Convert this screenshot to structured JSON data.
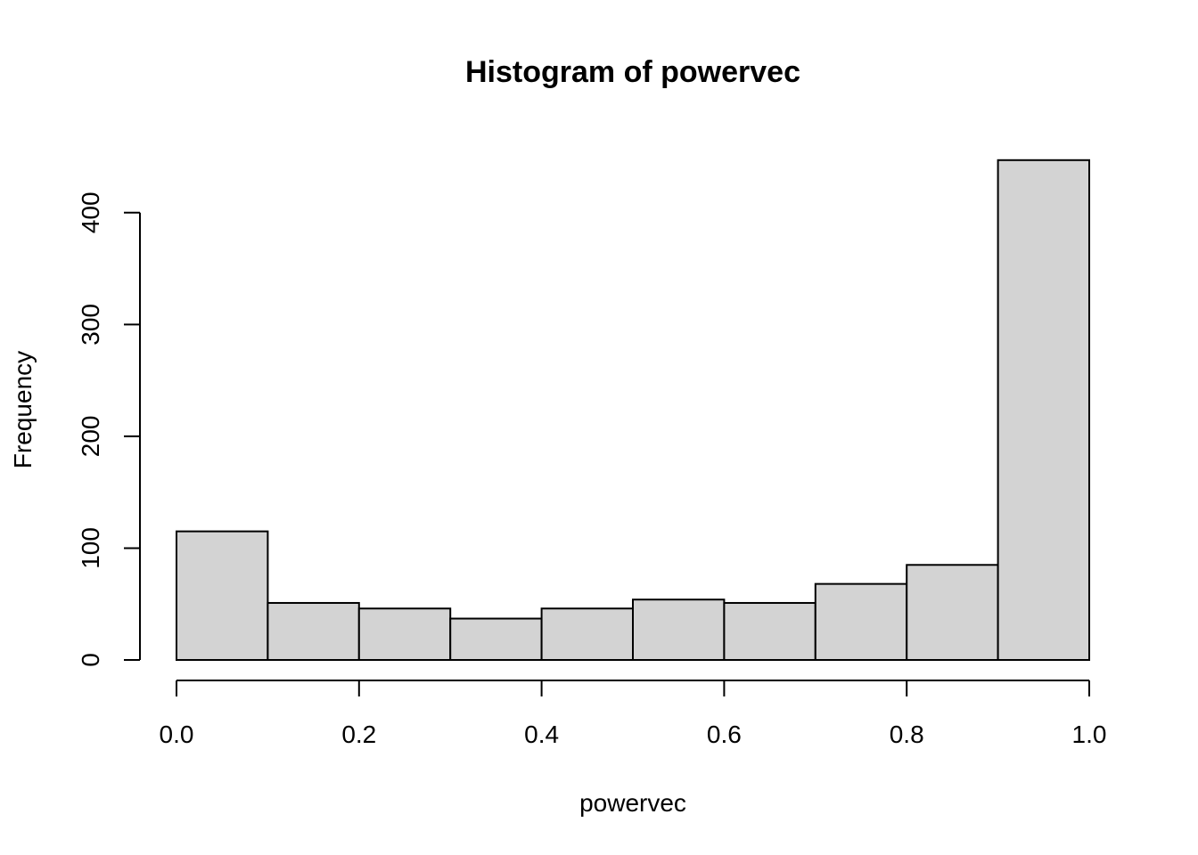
{
  "chart_data": {
    "type": "bar",
    "title": "Histogram of powervec",
    "xlabel": "powervec",
    "ylabel": "Frequency",
    "bins": [
      {
        "start": 0.0,
        "end": 0.1,
        "count": 115
      },
      {
        "start": 0.1,
        "end": 0.2,
        "count": 51
      },
      {
        "start": 0.2,
        "end": 0.3,
        "count": 46
      },
      {
        "start": 0.3,
        "end": 0.4,
        "count": 37
      },
      {
        "start": 0.4,
        "end": 0.5,
        "count": 46
      },
      {
        "start": 0.5,
        "end": 0.6,
        "count": 54
      },
      {
        "start": 0.6,
        "end": 0.7,
        "count": 51
      },
      {
        "start": 0.7,
        "end": 0.8,
        "count": 68
      },
      {
        "start": 0.8,
        "end": 0.9,
        "count": 85
      },
      {
        "start": 0.9,
        "end": 1.0,
        "count": 447
      }
    ],
    "xticks": [
      "0.0",
      "0.2",
      "0.4",
      "0.6",
      "0.8",
      "1.0"
    ],
    "yticks": [
      "0",
      "100",
      "200",
      "300",
      "400"
    ],
    "xlim": [
      0.0,
      1.0
    ],
    "ylim": [
      0,
      447
    ],
    "grid": false,
    "bar_fill": "#d3d3d3",
    "bar_stroke": "#000000"
  }
}
